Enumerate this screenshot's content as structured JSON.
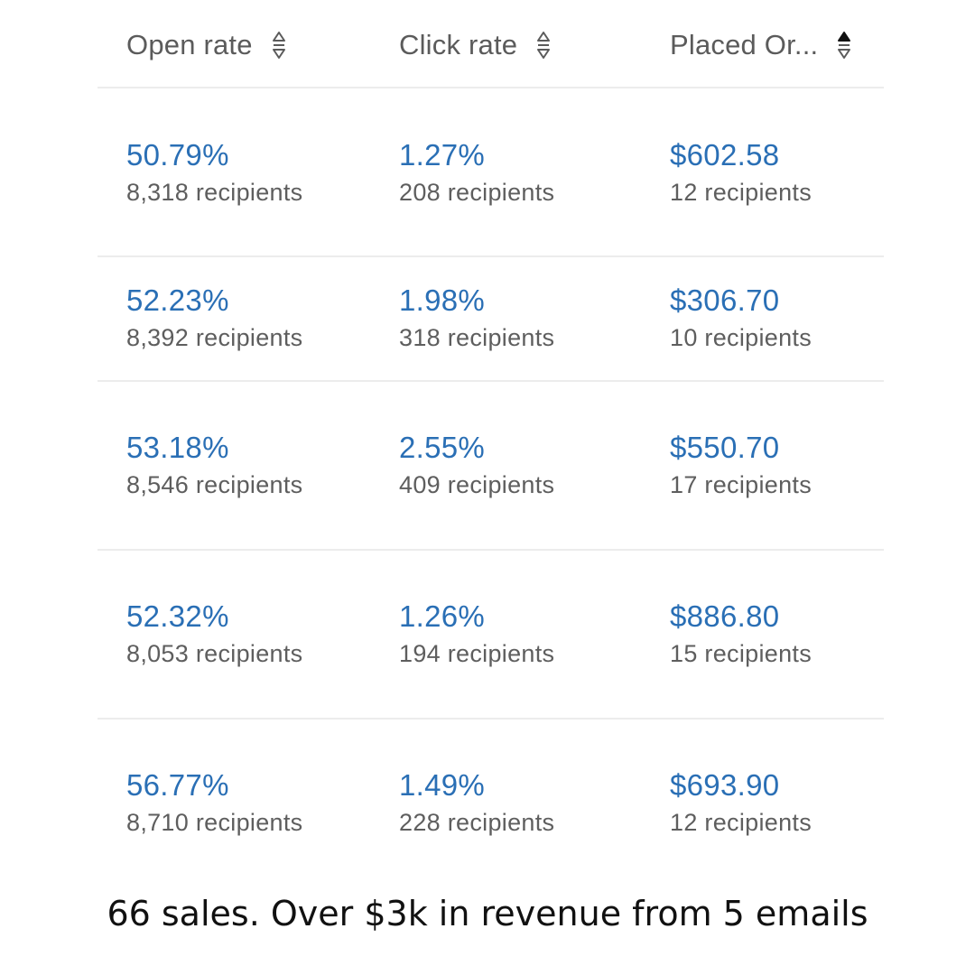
{
  "table": {
    "headers": [
      {
        "label": "Open rate",
        "sort_icon": "sort-updown-icon",
        "sort_state": "none"
      },
      {
        "label": "Click rate",
        "sort_icon": "sort-updown-icon",
        "sort_state": "none"
      },
      {
        "label": "Placed Or...",
        "sort_icon": "sort-updown-icon",
        "sort_state": "ascending"
      }
    ],
    "rows": [
      {
        "open_rate": "50.79%",
        "open_recipients": "8,318 recipients",
        "click_rate": "1.27%",
        "click_recipients": "208 recipients",
        "placed_order": "$602.58",
        "order_recipients": "12 recipients"
      },
      {
        "open_rate": "52.23%",
        "open_recipients": "8,392 recipients",
        "click_rate": "1.98%",
        "click_recipients": "318 recipients",
        "placed_order": "$306.70",
        "order_recipients": "10 recipients"
      },
      {
        "open_rate": "53.18%",
        "open_recipients": "8,546 recipients",
        "click_rate": "2.55%",
        "click_recipients": "409 recipients",
        "placed_order": "$550.70",
        "order_recipients": "17 recipients"
      },
      {
        "open_rate": "52.32%",
        "open_recipients": "8,053 recipients",
        "click_rate": "1.26%",
        "click_recipients": "194 recipients",
        "placed_order": "$886.80",
        "order_recipients": "15 recipients"
      },
      {
        "open_rate": "56.77%",
        "open_recipients": "8,710 recipients",
        "click_rate": "1.49%",
        "click_recipients": "228 recipients",
        "placed_order": "$693.90",
        "order_recipients": "12 recipients"
      }
    ]
  },
  "caption": "66 sales. Over $3k in revenue from 5 emails",
  "colors": {
    "metric": "#2a6fb5",
    "subtext": "#5e5e5e",
    "header_text": "#5b5b5b",
    "divider": "#ececec",
    "caption": "#111111"
  }
}
